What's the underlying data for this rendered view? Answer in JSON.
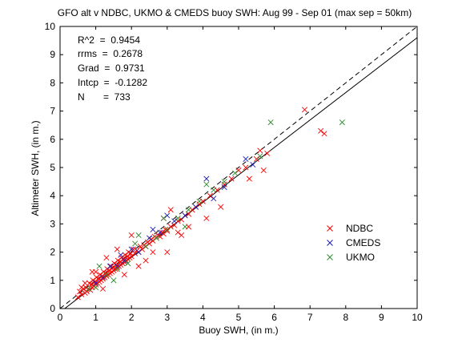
{
  "chart_data": {
    "type": "scatter",
    "title": "GFO alt v NDBC, UKMO & CMEDS buoy SWH: Aug 99 - Sep 01 (max sep = 50km)",
    "xlabel": "Buoy SWH, (in m.)",
    "ylabel": "Altimeter SWH, (in m.)",
    "xlim": [
      0,
      10
    ],
    "ylim": [
      0,
      10
    ],
    "xticks": [
      "0",
      "1",
      "2",
      "3",
      "4",
      "5",
      "6",
      "7",
      "8",
      "9",
      "10"
    ],
    "yticks": [
      "0",
      "1",
      "2",
      "3",
      "4",
      "5",
      "6",
      "7",
      "8",
      "9",
      "10"
    ],
    "grid": false,
    "legend_position": "lower-right",
    "stats": [
      {
        "label": "R^2",
        "value": "0.9454",
        "text": "R^2  =  0.9454"
      },
      {
        "label": "rrms",
        "value": "0.2678",
        "text": "rrms  =  0.2678"
      },
      {
        "label": "Grad",
        "value": "0.9731",
        "text": "Grad  =  0.9731"
      },
      {
        "label": "Intcp",
        "value": "-0.1282",
        "text": "Intcp  =  -0.1282"
      },
      {
        "label": "N",
        "value": "733",
        "text": "N       =  733"
      }
    ],
    "lines": [
      {
        "kind": "one-to-one",
        "style": "dashed",
        "slope": 1.0,
        "intercept": 0.0
      },
      {
        "kind": "regression",
        "style": "solid",
        "slope": 0.9731,
        "intercept": -0.1282
      }
    ],
    "series": [
      {
        "name": "NDBC",
        "color": "#ff0000",
        "marker": "x",
        "points": [
          [
            0.5,
            0.4
          ],
          [
            0.55,
            0.6
          ],
          [
            0.6,
            0.5
          ],
          [
            0.65,
            0.7
          ],
          [
            0.7,
            0.55
          ],
          [
            0.72,
            0.75
          ],
          [
            0.75,
            0.6
          ],
          [
            0.8,
            0.7
          ],
          [
            0.82,
            0.9
          ],
          [
            0.85,
            0.65
          ],
          [
            0.88,
            0.85
          ],
          [
            0.9,
            0.75
          ],
          [
            0.92,
            1.0
          ],
          [
            0.95,
            0.8
          ],
          [
            0.98,
            0.95
          ],
          [
            1.0,
            0.85
          ],
          [
            1.02,
            1.1
          ],
          [
            1.05,
            0.9
          ],
          [
            1.08,
            1.05
          ],
          [
            1.1,
            0.95
          ],
          [
            1.12,
            1.2
          ],
          [
            1.15,
            1.0
          ],
          [
            1.18,
            1.15
          ],
          [
            1.2,
            1.05
          ],
          [
            1.22,
            1.3
          ],
          [
            1.25,
            1.1
          ],
          [
            1.28,
            1.25
          ],
          [
            1.3,
            1.15
          ],
          [
            1.32,
            1.4
          ],
          [
            1.35,
            1.2
          ],
          [
            1.38,
            1.35
          ],
          [
            1.4,
            1.25
          ],
          [
            1.42,
            1.5
          ],
          [
            1.45,
            1.3
          ],
          [
            1.48,
            1.45
          ],
          [
            1.5,
            1.35
          ],
          [
            1.52,
            1.6
          ],
          [
            1.55,
            1.4
          ],
          [
            1.58,
            1.55
          ],
          [
            1.6,
            1.45
          ],
          [
            1.62,
            1.7
          ],
          [
            1.65,
            1.5
          ],
          [
            1.68,
            1.65
          ],
          [
            1.7,
            1.55
          ],
          [
            1.72,
            1.8
          ],
          [
            1.75,
            1.6
          ],
          [
            1.78,
            1.75
          ],
          [
            1.8,
            1.65
          ],
          [
            1.82,
            1.9
          ],
          [
            1.85,
            1.7
          ],
          [
            1.88,
            1.85
          ],
          [
            1.9,
            1.75
          ],
          [
            1.92,
            2.0
          ],
          [
            1.95,
            1.8
          ],
          [
            1.98,
            1.95
          ],
          [
            2.0,
            1.85
          ],
          [
            2.05,
            2.1
          ],
          [
            2.1,
            1.95
          ],
          [
            2.15,
            2.05
          ],
          [
            2.2,
            2.0
          ],
          [
            2.25,
            2.2
          ],
          [
            2.3,
            2.1
          ],
          [
            2.35,
            2.25
          ],
          [
            2.4,
            2.2
          ],
          [
            2.45,
            2.35
          ],
          [
            2.5,
            2.3
          ],
          [
            2.55,
            2.45
          ],
          [
            2.6,
            2.4
          ],
          [
            2.65,
            2.55
          ],
          [
            2.7,
            2.5
          ],
          [
            2.75,
            2.6
          ],
          [
            2.8,
            2.55
          ],
          [
            2.85,
            2.7
          ],
          [
            2.9,
            2.65
          ],
          [
            2.95,
            2.8
          ],
          [
            3.0,
            2.75
          ],
          [
            3.1,
            2.9
          ],
          [
            3.2,
            2.95
          ],
          [
            3.3,
            3.1
          ],
          [
            3.4,
            3.15
          ],
          [
            3.5,
            3.3
          ],
          [
            3.6,
            3.35
          ],
          [
            3.7,
            3.5
          ],
          [
            3.8,
            3.6
          ],
          [
            3.9,
            3.7
          ],
          [
            4.0,
            3.8
          ],
          [
            4.2,
            4.0
          ],
          [
            4.4,
            4.2
          ],
          [
            4.6,
            4.4
          ],
          [
            4.8,
            4.6
          ],
          [
            5.0,
            4.9
          ],
          [
            5.2,
            5.0
          ],
          [
            5.5,
            5.3
          ],
          [
            5.6,
            5.6
          ],
          [
            5.8,
            5.5
          ],
          [
            6.85,
            7.05
          ],
          [
            7.3,
            6.3
          ],
          [
            7.4,
            6.2
          ],
          [
            1.3,
            1.8
          ],
          [
            2.0,
            2.6
          ],
          [
            2.6,
            2.0
          ],
          [
            3.1,
            3.5
          ],
          [
            3.4,
            2.6
          ],
          [
            3.0,
            2.0
          ],
          [
            2.2,
            1.5
          ],
          [
            1.8,
            1.2
          ],
          [
            0.9,
            1.3
          ],
          [
            1.2,
            0.7
          ],
          [
            4.1,
            3.2
          ],
          [
            4.5,
            3.6
          ],
          [
            5.3,
            4.6
          ],
          [
            5.7,
            4.9
          ],
          [
            2.9,
            3.2
          ],
          [
            3.6,
            2.9
          ],
          [
            1.6,
            2.1
          ],
          [
            2.4,
            1.7
          ],
          [
            0.7,
            0.9
          ],
          [
            0.6,
            0.75
          ],
          [
            1.0,
            1.3
          ],
          [
            3.3,
            2.7
          ]
        ]
      },
      {
        "name": "CMEDS",
        "color": "#1f1fb4",
        "marker": "x",
        "points": [
          [
            1.0,
            0.9
          ],
          [
            1.2,
            1.1
          ],
          [
            1.4,
            1.5
          ],
          [
            1.6,
            1.5
          ],
          [
            1.8,
            1.7
          ],
          [
            2.0,
            2.1
          ],
          [
            2.2,
            2.0
          ],
          [
            2.5,
            2.5
          ],
          [
            2.8,
            2.7
          ],
          [
            3.0,
            3.3
          ],
          [
            3.2,
            3.1
          ],
          [
            3.5,
            3.3
          ],
          [
            3.8,
            3.6
          ],
          [
            4.1,
            4.6
          ],
          [
            4.3,
            3.9
          ],
          [
            4.6,
            4.3
          ],
          [
            5.2,
            5.3
          ],
          [
            5.4,
            5.1
          ],
          [
            1.7,
            1.9
          ],
          [
            2.6,
            2.8
          ]
        ]
      },
      {
        "name": "UKMO",
        "color": "#2e8b2e",
        "marker": "x",
        "points": [
          [
            0.8,
            0.7
          ],
          [
            1.0,
            0.75
          ],
          [
            1.3,
            1.2
          ],
          [
            1.6,
            1.4
          ],
          [
            1.9,
            1.6
          ],
          [
            2.1,
            2.3
          ],
          [
            2.4,
            2.2
          ],
          [
            2.7,
            2.5
          ],
          [
            3.0,
            2.8
          ],
          [
            3.3,
            3.2
          ],
          [
            3.6,
            3.5
          ],
          [
            3.9,
            3.8
          ],
          [
            4.1,
            4.4
          ],
          [
            4.3,
            4.2
          ],
          [
            4.6,
            4.5
          ],
          [
            4.9,
            4.8
          ],
          [
            5.6,
            5.4
          ],
          [
            5.9,
            6.6
          ],
          [
            7.9,
            6.6
          ],
          [
            1.5,
            1.0
          ],
          [
            2.2,
            2.6
          ],
          [
            2.9,
            3.2
          ],
          [
            3.5,
            2.9
          ],
          [
            1.1,
            1.5
          ]
        ]
      }
    ]
  }
}
